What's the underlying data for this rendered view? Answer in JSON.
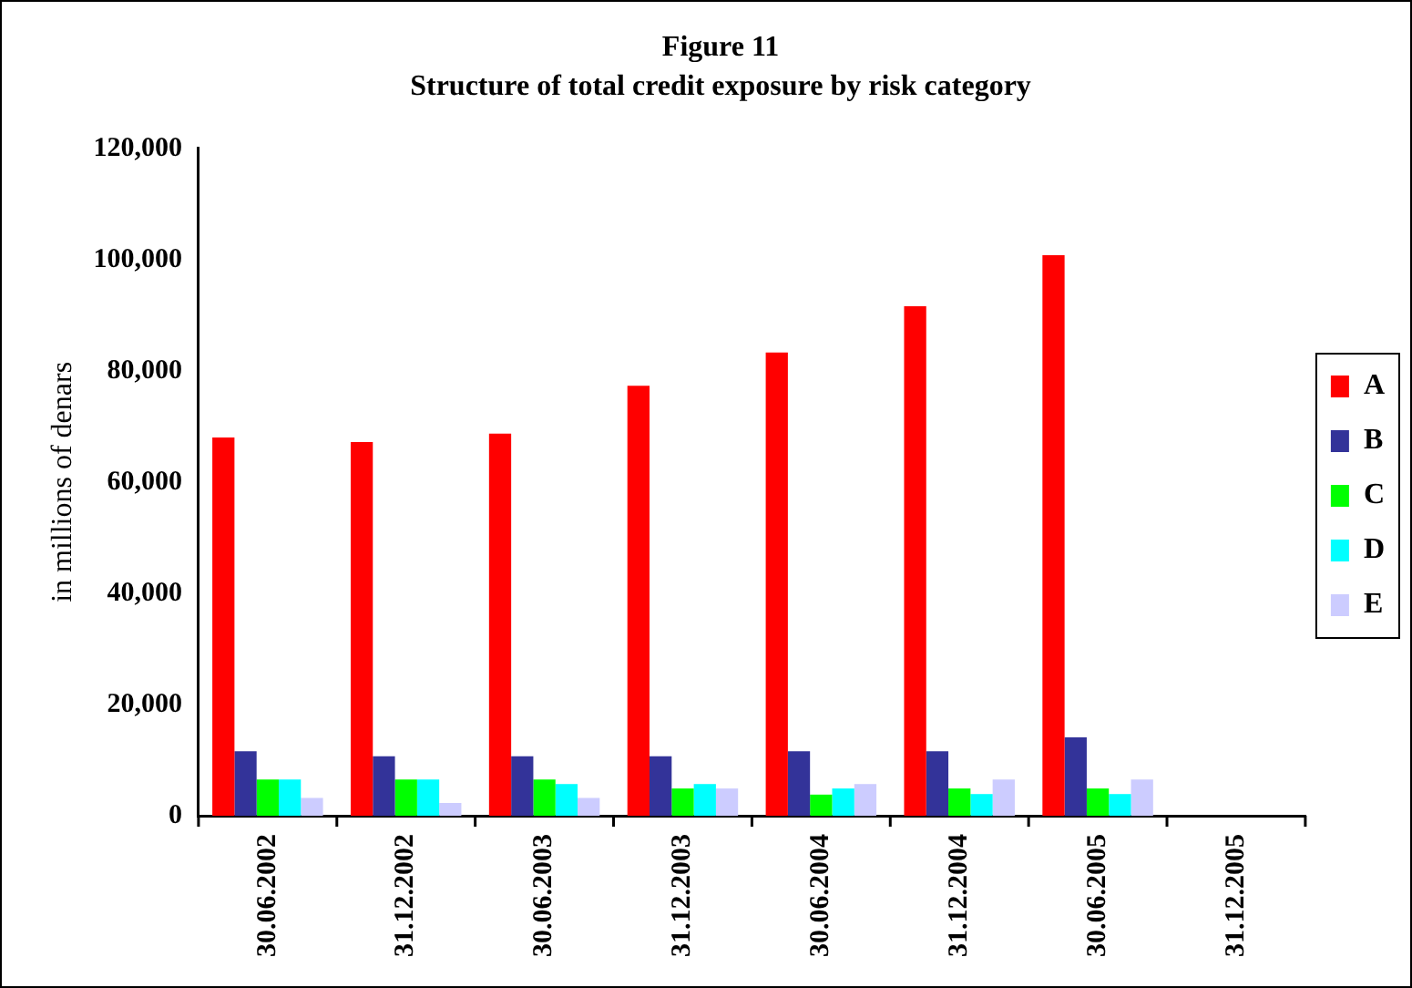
{
  "chart_data": {
    "type": "bar",
    "title": "Figure 11",
    "subtitle": "Structure of total credit exposure by risk category",
    "ylabel": "in millions of denars",
    "categories": [
      "30.06.2002",
      "31.12.2002",
      "30.06.2003",
      "31.12.2003",
      "30.06.2004",
      "31.12.2004",
      "30.06.2005",
      "31.12.2005"
    ],
    "series": [
      {
        "name": "A",
        "color": "#ff0000",
        "values": [
          68000,
          67200,
          68700,
          77300,
          83300,
          91600,
          100800,
          null
        ]
      },
      {
        "name": "B",
        "color": "#333399",
        "values": [
          11600,
          10700,
          10700,
          10700,
          11600,
          11600,
          14100,
          null
        ]
      },
      {
        "name": "C",
        "color": "#00ff00",
        "values": [
          6500,
          6500,
          6500,
          4900,
          3800,
          4900,
          4900,
          null
        ]
      },
      {
        "name": "D",
        "color": "#00ffff",
        "values": [
          6500,
          6500,
          5700,
          5700,
          4900,
          3900,
          3900,
          null
        ]
      },
      {
        "name": "E",
        "color": "#ccccff",
        "values": [
          3200,
          2300,
          3200,
          4900,
          5700,
          6500,
          6500,
          null
        ]
      }
    ],
    "ylim": [
      0,
      120000
    ],
    "yticks": [
      {
        "value": 0,
        "label": "0"
      },
      {
        "value": 20000,
        "label": "20,000"
      },
      {
        "value": 40000,
        "label": "40,000"
      },
      {
        "value": 60000,
        "label": "60,000"
      },
      {
        "value": 80000,
        "label": "80,000"
      },
      {
        "value": 100000,
        "label": "100,000"
      },
      {
        "value": 120000,
        "label": "120,000"
      }
    ],
    "grid": false,
    "legend": "right"
  }
}
